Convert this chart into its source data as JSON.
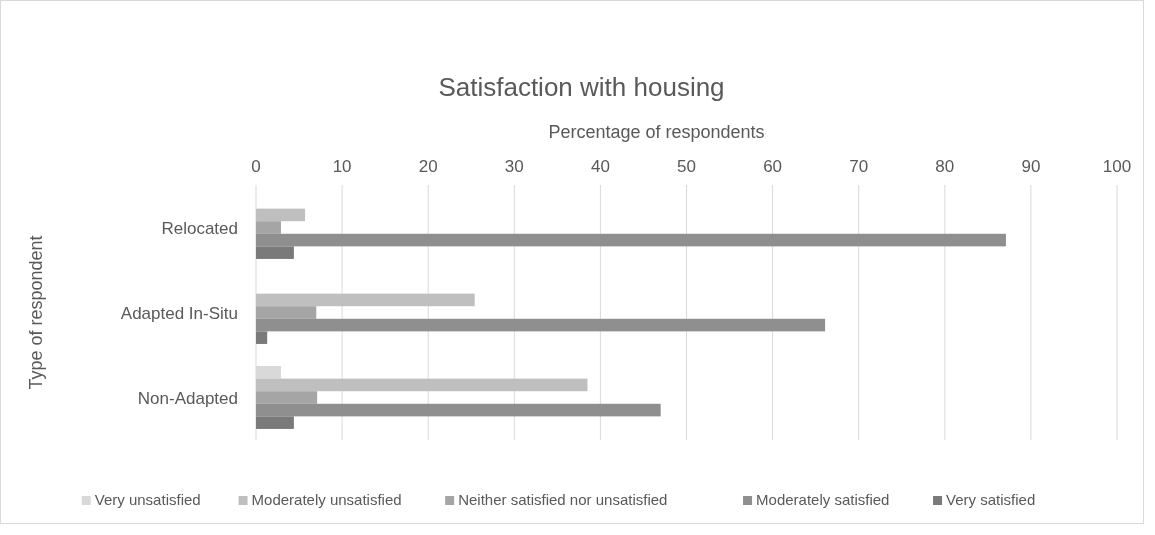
{
  "chart_data": {
    "type": "bar",
    "orientation": "horizontal",
    "title": "Satisfaction with housing",
    "xlabel": "Percentage of respondents",
    "ylabel": "Type of respondent",
    "categories": [
      "Relocated",
      "Adapted In-Situ",
      "Non-Adapted"
    ],
    "series": [
      {
        "name": "Very unsatisfied",
        "color": "#d9d9d9",
        "values": [
          0,
          0,
          2.9
        ]
      },
      {
        "name": "Moderately unsatisfied",
        "color": "#bfbfbf",
        "values": [
          5.7,
          25.4,
          38.5
        ]
      },
      {
        "name": "Neither satisfied nor unsatisfied",
        "color": "#a5a5a5",
        "values": [
          2.9,
          7,
          7.1
        ]
      },
      {
        "name": "Moderately satisfied",
        "color": "#8f8f8f",
        "values": [
          87.1,
          66.1,
          47
        ]
      },
      {
        "name": "Very satisfied",
        "color": "#7a7a7a",
        "values": [
          4.4,
          1.3,
          4.4
        ]
      }
    ],
    "xlim": [
      0,
      100
    ],
    "xticks": [
      0,
      10,
      20,
      30,
      40,
      50,
      60,
      70,
      80,
      90,
      100
    ],
    "grid": "x",
    "legend": "bottom"
  }
}
